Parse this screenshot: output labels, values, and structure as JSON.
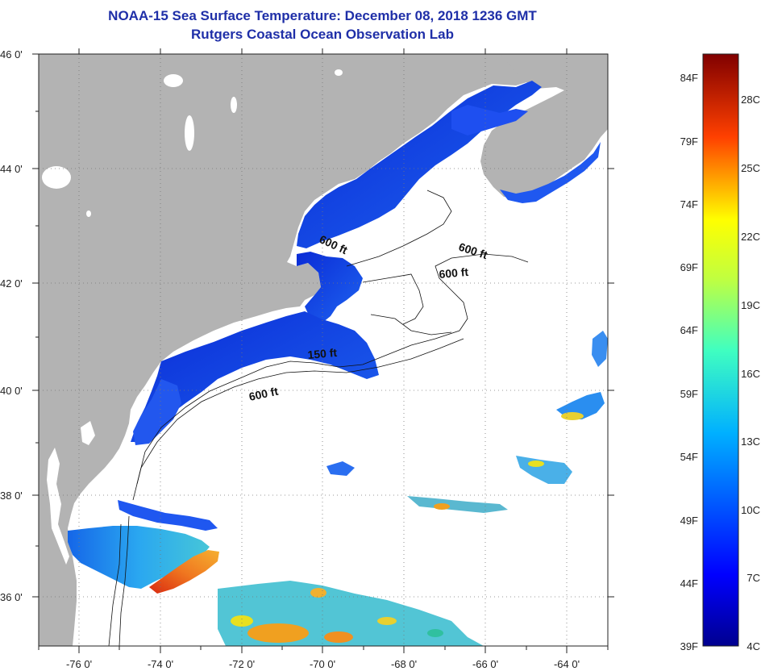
{
  "header": {
    "title": "NOAA-15 Sea Surface Temperature:  December 08, 2018 1236 GMT",
    "subtitle": "Rutgers Coastal Ocean Observation Lab"
  },
  "map": {
    "lon_range": [
      -77,
      -63
    ],
    "lat_range": [
      35,
      46
    ],
    "lon_ticks": [
      "-76 0'",
      "-74 0'",
      "-72 0'",
      "-70 0'",
      "-68 0'",
      "-66 0'",
      "-64 0'"
    ],
    "lat_ticks": [
      "46 0'",
      "44 0'",
      "42 0'",
      "40 0'",
      "38 0'",
      "36 0'"
    ],
    "isobath_labels": [
      "600 ft",
      "600 ft",
      "600 ft",
      "150 ft",
      "600 ft"
    ],
    "land_color": "#b3b3b3",
    "ocean_color": "#ffffff"
  },
  "colorbar": {
    "f_labels": [
      "84F",
      "79F",
      "74F",
      "69F",
      "64F",
      "59F",
      "54F",
      "49F",
      "44F",
      "39F"
    ],
    "c_labels": [
      "28C",
      "25C",
      "22C",
      "19C",
      "16C",
      "13C",
      "10C",
      "7C",
      "4C"
    ]
  }
}
